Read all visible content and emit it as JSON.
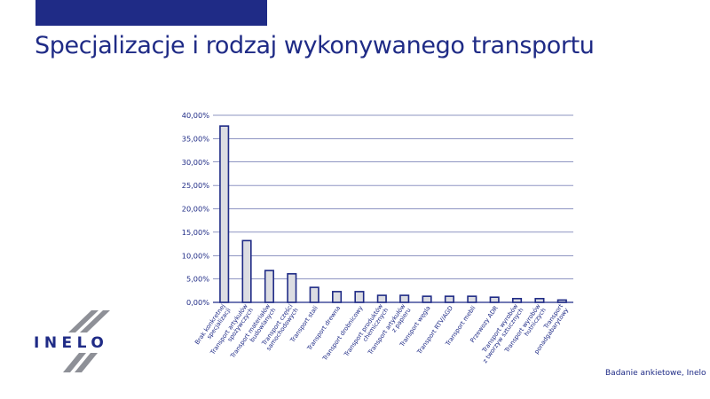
{
  "header": {
    "title": "Specjalizacje i rodzaj wykonywanego transportu"
  },
  "colors": {
    "brand": "#1f2b86",
    "bar_fill": "#dcdde2",
    "bar_stroke": "#1f2b86",
    "grid": "#1f2b86",
    "logo_gray": "#8e9097"
  },
  "logo": {
    "text": "INELO"
  },
  "source": "Badanie ankietowe, Inelo",
  "chart_data": {
    "type": "bar",
    "title": "",
    "xlabel": "",
    "ylabel": "",
    "ylim": [
      0,
      40
    ],
    "yticks": [
      "0,00%",
      "5,00%",
      "10,00%",
      "15,00%",
      "20,00%",
      "25,00%",
      "30,00%",
      "35,00%",
      "40,00%"
    ],
    "grid": true,
    "categories": [
      [
        "Brak konkretnej",
        "specjalizacji"
      ],
      [
        "Transport artykułów",
        "spożywczych"
      ],
      [
        "Transport materiałów",
        "budowlanych"
      ],
      [
        "Transport części",
        "samochodowych"
      ],
      [
        "Transport stali"
      ],
      [
        "Transport drewna"
      ],
      [
        "Transport drobnicowy"
      ],
      [
        "Transport produktów",
        "chemicznych"
      ],
      [
        "Transport artykułów",
        "z papieru"
      ],
      [
        "Transport węgla"
      ],
      [
        "Transport RTV/AGD"
      ],
      [
        "Transport mebli"
      ],
      [
        "Przewozy ADR"
      ],
      [
        "Transport wyrobów",
        "z tworzyw sztucznych"
      ],
      [
        "Transport wyrobów",
        "hutniczych"
      ],
      [
        "Transport",
        "ponadgabarytowy"
      ]
    ],
    "values": [
      37.7,
      13.2,
      6.8,
      6.1,
      3.2,
      2.3,
      2.3,
      1.5,
      1.5,
      1.3,
      1.3,
      1.3,
      1.1,
      0.8,
      0.8,
      0.5
    ]
  }
}
